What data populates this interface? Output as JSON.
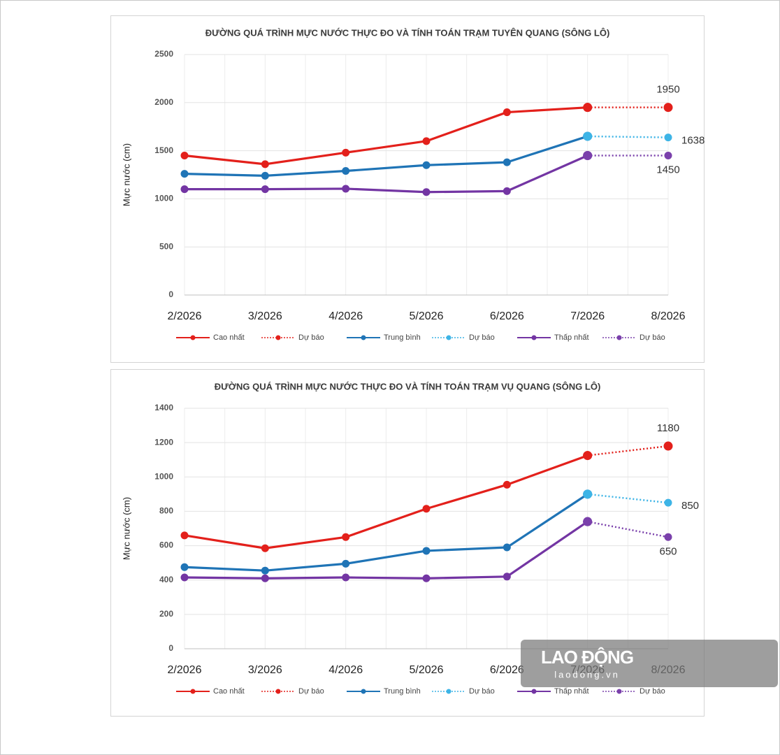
{
  "chart_data": [
    {
      "type": "line",
      "title": "ĐƯỜNG QUÁ TRÌNH MỰC NƯỚC THỰC ĐO VÀ TÍNH TOÁN TRẠM TUYÊN QUANG (SÔNG LÔ)",
      "y_label": "Mực nước (cm)",
      "categories": [
        "2/2026",
        "3/2026",
        "4/2026",
        "5/2026",
        "6/2026",
        "7/2026",
        "8/2026"
      ],
      "ylim": [
        0,
        2500
      ],
      "yticks": [
        0,
        500,
        1000,
        1500,
        2000,
        2500
      ],
      "grid": true,
      "series": [
        {
          "name": "Cao nhất",
          "color": "#e3201b",
          "style": "solid",
          "values": [
            1450,
            1360,
            1480,
            1600,
            1900,
            1950,
            null
          ]
        },
        {
          "name": "Dự báo",
          "color": "#e3201b",
          "style": "dotted",
          "values": [
            null,
            null,
            null,
            null,
            null,
            1950,
            1950
          ]
        },
        {
          "name": "Trung bình",
          "color": "#1f74b6",
          "style": "solid",
          "values": [
            1260,
            1240,
            1290,
            1350,
            1380,
            1650,
            null
          ]
        },
        {
          "name": "Dự báo",
          "color": "#3db4e6",
          "style": "dotted",
          "values": [
            null,
            null,
            null,
            null,
            null,
            1650,
            1638
          ]
        },
        {
          "name": "Thấp nhất",
          "color": "#7335a3",
          "style": "solid",
          "values": [
            1100,
            1100,
            1105,
            1070,
            1080,
            1450,
            null
          ]
        },
        {
          "name": "Dự báo",
          "color": "#7a40ab",
          "style": "dotted",
          "values": [
            null,
            null,
            null,
            null,
            null,
            1450,
            1450
          ]
        }
      ]
    },
    {
      "type": "line",
      "title": "ĐƯỜNG QUÁ TRÌNH MỰC NƯỚC THỰC ĐO VÀ TÍNH TOÁN TRẠM VỤ QUANG (SÔNG LÔ)",
      "y_label": "Mực nước (cm)",
      "categories": [
        "2/2026",
        "3/2026",
        "4/2026",
        "5/2026",
        "6/2026",
        "7/2026",
        "8/2026"
      ],
      "ylim": [
        0,
        1400
      ],
      "yticks": [
        0,
        200,
        400,
        600,
        800,
        1000,
        1200,
        1400
      ],
      "grid": true,
      "series": [
        {
          "name": "Cao nhất",
          "color": "#e3201b",
          "style": "solid",
          "values": [
            660,
            585,
            650,
            815,
            955,
            1125,
            null
          ]
        },
        {
          "name": "Dự báo",
          "color": "#e3201b",
          "style": "dotted",
          "values": [
            null,
            null,
            null,
            null,
            null,
            1125,
            1180
          ]
        },
        {
          "name": "Trung bình",
          "color": "#1f74b6",
          "style": "solid",
          "values": [
            475,
            455,
            495,
            570,
            590,
            900,
            null
          ]
        },
        {
          "name": "Dự báo",
          "color": "#3db4e6",
          "style": "dotted",
          "values": [
            null,
            null,
            null,
            null,
            null,
            900,
            850
          ]
        },
        {
          "name": "Thấp nhất",
          "color": "#7335a3",
          "style": "solid",
          "values": [
            415,
            410,
            415,
            410,
            420,
            740,
            null
          ]
        },
        {
          "name": "Dự báo",
          "color": "#7a40ab",
          "style": "dotted",
          "values": [
            null,
            null,
            null,
            null,
            null,
            740,
            650
          ]
        }
      ]
    }
  ],
  "watermark": {
    "title": "LAO ĐỘNG",
    "url": "laodong.vn"
  }
}
